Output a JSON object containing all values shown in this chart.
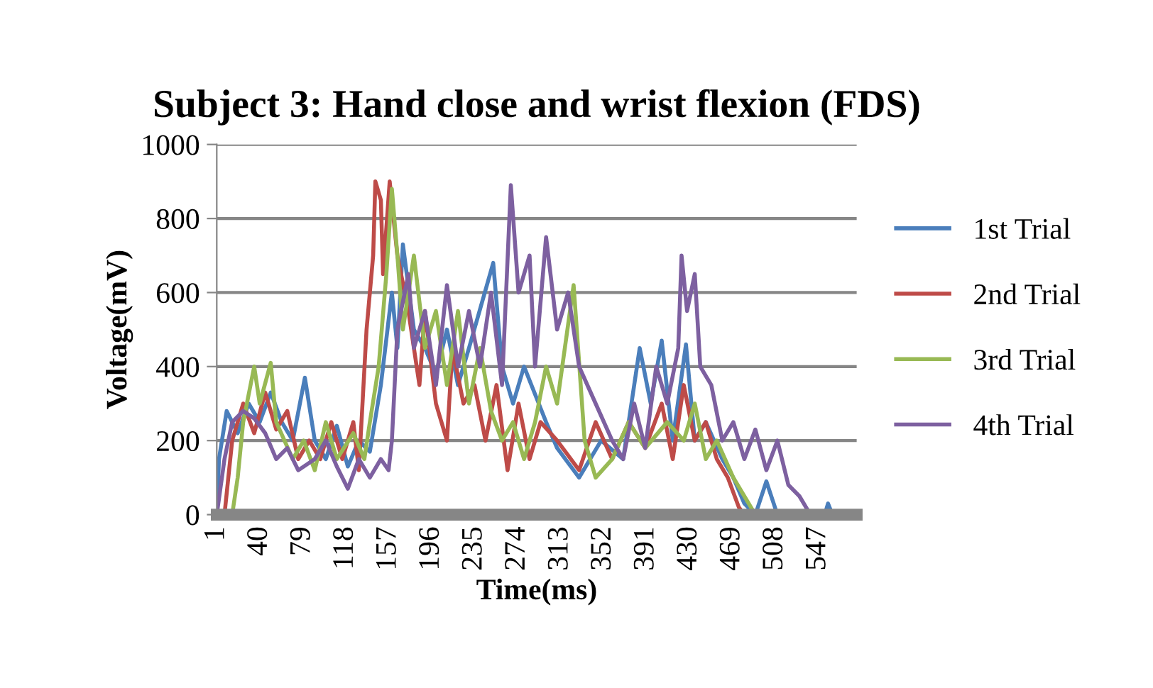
{
  "chart_data": {
    "type": "line",
    "title": "Subject 3: Hand close and wrist flexion (FDS)",
    "xlabel": "Time(ms)",
    "ylabel": "Voltage(mV)",
    "xlim": [
      1,
      582
    ],
    "xticks": [
      1,
      40,
      79,
      118,
      157,
      196,
      235,
      274,
      313,
      352,
      391,
      430,
      469,
      508,
      547
    ],
    "ylim": [
      0,
      1000
    ],
    "yticks": [
      0,
      200,
      400,
      600,
      800,
      1000
    ],
    "grid": "y",
    "legend": "right",
    "marker": "none",
    "line_style": "solid",
    "series": [
      {
        "name": "1st Trial",
        "color": "#4a7ebb",
        "x": [
          1,
          3,
          10,
          20,
          30,
          40,
          50,
          60,
          70,
          81,
          90,
          100,
          110,
          120,
          130,
          140,
          150,
          160,
          165,
          170,
          180,
          190,
          200,
          210,
          220,
          230,
          252,
          260,
          270,
          280,
          300,
          310,
          330,
          350,
          370,
          385,
          395,
          405,
          415,
          427,
          435,
          445,
          460,
          470,
          480,
          490,
          500,
          510,
          553,
          556,
          560,
          582
        ],
        "values": [
          0,
          150,
          280,
          220,
          300,
          250,
          330,
          250,
          200,
          370,
          200,
          150,
          240,
          130,
          200,
          170,
          350,
          600,
          450,
          730,
          500,
          450,
          380,
          500,
          350,
          450,
          680,
          400,
          300,
          400,
          250,
          180,
          100,
          200,
          150,
          450,
          300,
          470,
          200,
          460,
          200,
          250,
          150,
          100,
          30,
          0,
          90,
          0,
          0,
          30,
          0,
          0
        ]
      },
      {
        "name": "2nd Trial",
        "color": "#be4b48",
        "x": [
          1,
          8,
          15,
          25,
          35,
          45,
          55,
          65,
          75,
          85,
          95,
          105,
          115,
          125,
          130,
          137,
          143,
          145,
          150,
          152,
          158,
          165,
          175,
          185,
          190,
          200,
          210,
          215,
          225,
          235,
          245,
          255,
          265,
          275,
          285,
          295,
          310,
          330,
          345,
          360,
          375,
          390,
          405,
          415,
          425,
          435,
          445,
          455,
          465,
          475,
          480,
          582
        ],
        "values": [
          0,
          0,
          200,
          300,
          220,
          330,
          230,
          280,
          150,
          200,
          150,
          250,
          150,
          250,
          120,
          500,
          700,
          900,
          850,
          650,
          900,
          700,
          550,
          350,
          550,
          300,
          200,
          450,
          300,
          350,
          200,
          350,
          120,
          300,
          150,
          250,
          200,
          120,
          250,
          150,
          250,
          180,
          300,
          150,
          350,
          200,
          250,
          150,
          100,
          20,
          0,
          0
        ]
      },
      {
        "name": "3rd Trial",
        "color": "#98b954",
        "x": [
          1,
          15,
          20,
          25,
          35,
          40,
          50,
          55,
          70,
          80,
          90,
          100,
          110,
          125,
          135,
          140,
          148,
          155,
          160,
          165,
          170,
          180,
          190,
          200,
          210,
          220,
          230,
          240,
          250,
          260,
          270,
          280,
          290,
          300,
          310,
          325,
          335,
          345,
          360,
          375,
          390,
          410,
          425,
          435,
          445,
          455,
          470,
          480,
          490,
          582
        ],
        "values": [
          0,
          0,
          100,
          250,
          400,
          300,
          410,
          250,
          150,
          200,
          120,
          250,
          150,
          220,
          150,
          250,
          400,
          650,
          880,
          700,
          500,
          700,
          450,
          550,
          350,
          550,
          300,
          450,
          280,
          200,
          250,
          150,
          250,
          400,
          300,
          620,
          200,
          100,
          150,
          250,
          180,
          250,
          200,
          300,
          150,
          200,
          100,
          50,
          0,
          0
        ]
      },
      {
        "name": "4th Trial",
        "color": "#7d60a0",
        "x": [
          1,
          8,
          15,
          25,
          35,
          45,
          55,
          65,
          75,
          90,
          100,
          110,
          120,
          130,
          140,
          150,
          157,
          160,
          165,
          175,
          180,
          190,
          200,
          210,
          220,
          230,
          240,
          250,
          260,
          268,
          275,
          285,
          290,
          300,
          310,
          320,
          330,
          345,
          360,
          370,
          380,
          390,
          400,
          410,
          420,
          423,
          428,
          435,
          440,
          450,
          460,
          470,
          480,
          490,
          500,
          510,
          520,
          530,
          540,
          582
        ],
        "values": [
          0,
          150,
          250,
          280,
          260,
          220,
          150,
          180,
          120,
          150,
          200,
          130,
          70,
          150,
          100,
          150,
          120,
          200,
          500,
          650,
          450,
          550,
          350,
          620,
          400,
          550,
          400,
          600,
          350,
          890,
          600,
          700,
          400,
          750,
          500,
          600,
          400,
          300,
          200,
          150,
          300,
          180,
          400,
          300,
          450,
          700,
          550,
          650,
          400,
          350,
          200,
          250,
          150,
          230,
          120,
          200,
          80,
          50,
          0,
          0
        ]
      }
    ]
  }
}
